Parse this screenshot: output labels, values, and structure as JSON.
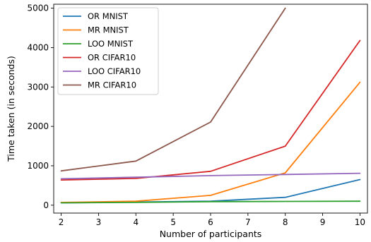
{
  "chart_data": {
    "type": "line",
    "title": "",
    "xlabel": "Number of participants",
    "ylabel": "Time taken (in seconds)",
    "xlim": [
      1.8,
      10.2
    ],
    "ylim": [
      -200,
      5100
    ],
    "xticks": [
      2,
      3,
      4,
      5,
      6,
      7,
      8,
      9,
      10
    ],
    "yticks": [
      0,
      1000,
      2000,
      3000,
      4000,
      5000
    ],
    "grid": false,
    "legend_position": "top-left",
    "series": [
      {
        "name": "OR MNIST",
        "color": "#1f77b4",
        "x": [
          2,
          4,
          6,
          8,
          10
        ],
        "y": [
          60,
          80,
          100,
          200,
          650
        ]
      },
      {
        "name": "MR MNIST",
        "color": "#ff7f0e",
        "x": [
          2,
          4,
          6,
          8,
          10
        ],
        "y": [
          70,
          100,
          250,
          820,
          3120
        ]
      },
      {
        "name": "LOO MNIST",
        "color": "#2ca02c",
        "x": [
          2,
          4,
          6,
          8,
          10
        ],
        "y": [
          60,
          70,
          90,
          95,
          100
        ]
      },
      {
        "name": "OR CIFAR10",
        "color": "#d62728",
        "x": [
          2,
          4,
          6,
          8,
          10
        ],
        "y": [
          640,
          680,
          860,
          1500,
          4180
        ]
      },
      {
        "name": "LOO CIFAR10",
        "color": "#9467bd",
        "x": [
          2,
          4,
          6,
          8,
          10
        ],
        "y": [
          670,
          710,
          750,
          780,
          810
        ]
      },
      {
        "name": "MR CIFAR10",
        "color": "#8c564b",
        "x": [
          2,
          4,
          6,
          8
        ],
        "y": [
          870,
          1120,
          2110,
          5000
        ]
      }
    ]
  }
}
